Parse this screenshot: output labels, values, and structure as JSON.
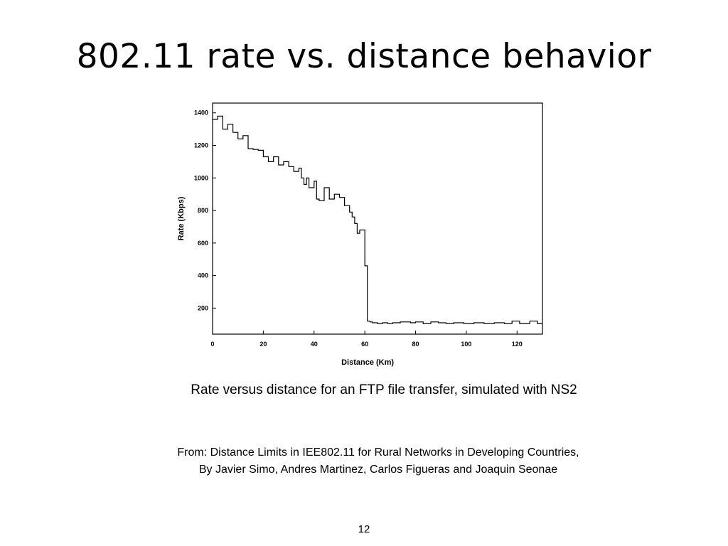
{
  "slide": {
    "title": "802.11 rate vs. distance behavior",
    "caption": "Rate versus distance for an FTP file transfer, simulated with NS2",
    "source_line1": "From: Distance Limits in IEE802.11 for Rural Networks in Developing Countries,",
    "source_line2": "By Javier Simo,  Andres Martinez, Carlos Figueras and Joaquin Seonae",
    "page_number": "12"
  },
  "chart_data": {
    "type": "line",
    "step": true,
    "title": "",
    "xlabel": "Distance (Km)",
    "ylabel": "Rate (Kbps)",
    "xlim": [
      0,
      130
    ],
    "ylim": [
      40,
      1460
    ],
    "xticks": [
      0,
      20,
      40,
      60,
      80,
      100,
      120
    ],
    "yticks": [
      200,
      400,
      600,
      800,
      1000,
      1200,
      1400
    ],
    "grid": false,
    "legend": "none",
    "color": "#000000",
    "series": [
      {
        "x": [
          0,
          2,
          4,
          6,
          8,
          10,
          12,
          14,
          16,
          18,
          20,
          22,
          24,
          26,
          28,
          30,
          32,
          34,
          35,
          36,
          37,
          38,
          40,
          41,
          42,
          44,
          46,
          48,
          50,
          52,
          54,
          55,
          56,
          57,
          58,
          60,
          61,
          62,
          63,
          65,
          67,
          69,
          71,
          74,
          78,
          80,
          83,
          86,
          89,
          92,
          95,
          99,
          103,
          107,
          111,
          115,
          118,
          121,
          125,
          128
        ],
        "values": [
          1360,
          1380,
          1300,
          1330,
          1280,
          1240,
          1260,
          1180,
          1175,
          1170,
          1130,
          1100,
          1130,
          1080,
          1100,
          1070,
          1040,
          1060,
          1000,
          960,
          1000,
          940,
          980,
          870,
          860,
          940,
          870,
          900,
          880,
          830,
          790,
          760,
          720,
          660,
          680,
          460,
          120,
          115,
          110,
          105,
          110,
          105,
          110,
          115,
          110,
          115,
          105,
          115,
          110,
          105,
          110,
          105,
          110,
          105,
          110,
          105,
          120,
          105,
          120,
          105
        ]
      }
    ]
  }
}
